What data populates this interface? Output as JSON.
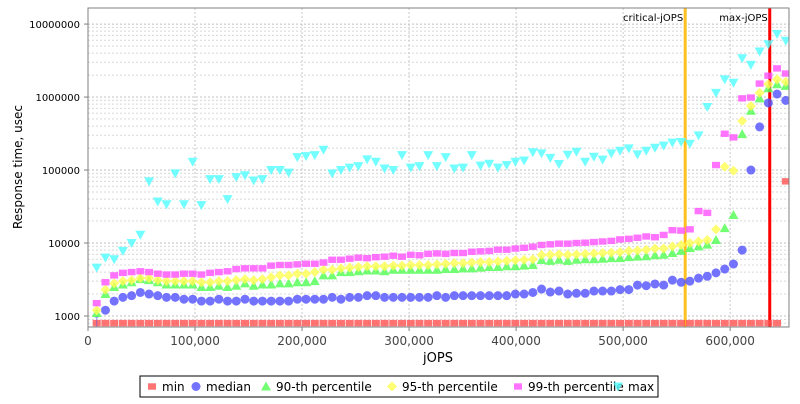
{
  "chart_data": {
    "type": "scatter",
    "title": "",
    "xlabel": "jOPS",
    "ylabel": "Response time, usec",
    "xlim": [
      0,
      655000
    ],
    "ylim": [
      707,
      16600000
    ],
    "yscale": "log",
    "grid": true,
    "legend_placement": "bottom",
    "x_ticks": [
      0,
      100000,
      200000,
      300000,
      400000,
      500000,
      600000
    ],
    "x_tick_labels": [
      "0",
      "100,000",
      "200,000",
      "300,000",
      "400,000",
      "500,000",
      "600,000"
    ],
    "y_ticks": [
      1000,
      10000,
      100000,
      1000000,
      10000000
    ],
    "y_tick_labels": [
      "1000",
      "10000",
      "100000",
      "1000000",
      "10000000"
    ],
    "x_step": 8150,
    "x_count": 80,
    "markers": [
      {
        "label": "critical-jOPS",
        "x": 558000,
        "color": "#ffc020"
      },
      {
        "label": "max-jOPS",
        "x": 637000,
        "color": "#ff0000"
      }
    ],
    "series": [
      {
        "name": "min",
        "color": "#ff5050",
        "shape": "square",
        "values": [
          800,
          800,
          800,
          800,
          800,
          800,
          800,
          800,
          800,
          800,
          800,
          800,
          800,
          800,
          800,
          800,
          800,
          800,
          800,
          800,
          800,
          800,
          800,
          800,
          800,
          800,
          800,
          800,
          800,
          800,
          800,
          800,
          800,
          800,
          800,
          800,
          800,
          800,
          800,
          800,
          800,
          800,
          800,
          800,
          800,
          800,
          800,
          800,
          800,
          800,
          800,
          800,
          800,
          800,
          800,
          800,
          800,
          800,
          800,
          800,
          800,
          800,
          800,
          800,
          800,
          800,
          800,
          800,
          800,
          800,
          800,
          800,
          800,
          800,
          800,
          800,
          800,
          800,
          800,
          70000
        ]
      },
      {
        "name": "median",
        "color": "#5050ff",
        "shape": "circle",
        "values": [
          700,
          1200,
          1600,
          1800,
          1900,
          2100,
          2000,
          1900,
          1800,
          1800,
          1700,
          1700,
          1600,
          1600,
          1700,
          1600,
          1600,
          1700,
          1600,
          1600,
          1600,
          1600,
          1600,
          1700,
          1700,
          1700,
          1700,
          1800,
          1700,
          1800,
          1800,
          1900,
          1900,
          1800,
          1800,
          1800,
          1800,
          1800,
          1800,
          1900,
          1800,
          1900,
          1900,
          1900,
          1900,
          1900,
          1900,
          1900,
          2000,
          2000,
          2100,
          2340,
          2130,
          2200,
          2000,
          2050,
          2050,
          2200,
          2200,
          2200,
          2300,
          2300,
          2650,
          2600,
          2750,
          2650,
          3100,
          2900,
          3000,
          3300,
          3500,
          3900,
          4400,
          5150,
          8000,
          100000,
          390000,
          830000,
          1100000,
          900000
        ]
      },
      {
        "name": "90-th percentile",
        "color": "#50ff50",
        "shape": "triangle-up",
        "values": [
          1100,
          2000,
          2500,
          2700,
          2900,
          3200,
          3100,
          2900,
          2700,
          2700,
          2700,
          2700,
          2500,
          2500,
          2600,
          2500,
          2600,
          2800,
          2600,
          2700,
          2700,
          2800,
          2800,
          2900,
          2900,
          3000,
          3600,
          3600,
          4000,
          4000,
          4100,
          4200,
          4200,
          4100,
          4300,
          4300,
          4300,
          4300,
          4300,
          4300,
          4400,
          4400,
          4500,
          4500,
          4600,
          4700,
          4700,
          4800,
          4800,
          4900,
          5000,
          5850,
          5700,
          5900,
          5700,
          5900,
          6000,
          6000,
          6100,
          6200,
          6200,
          6400,
          6500,
          6600,
          6800,
          6900,
          7300,
          7800,
          8500,
          9000,
          9500,
          11000,
          16000,
          24200,
          310000,
          650000,
          960000,
          1320000,
          1500000,
          1420000
        ]
      },
      {
        "name": "95-th percentile",
        "color": "#ffff50",
        "shape": "diamond",
        "values": [
          1200,
          2300,
          2800,
          3000,
          3100,
          3300,
          3300,
          3100,
          3000,
          3000,
          3000,
          3000,
          2900,
          2900,
          3000,
          3000,
          3100,
          3200,
          3100,
          3200,
          3400,
          3600,
          3600,
          3800,
          3800,
          4000,
          4300,
          4300,
          4500,
          4600,
          4700,
          4800,
          4800,
          4800,
          4900,
          4900,
          5000,
          5000,
          5000,
          5100,
          5200,
          5300,
          5300,
          5400,
          5500,
          5500,
          5600,
          5700,
          5800,
          5900,
          6000,
          6850,
          6900,
          7000,
          6900,
          7000,
          7100,
          7200,
          7300,
          7400,
          7500,
          7800,
          7900,
          8100,
          8400,
          8400,
          9000,
          9400,
          10000,
          10500,
          11000,
          15400,
          111000,
          97800,
          470000,
          754000,
          1140000,
          1500000,
          1750000,
          1620000
        ]
      },
      {
        "name": "99-th percentile",
        "color": "#ff50ff",
        "shape": "square",
        "values": [
          1500,
          2900,
          3600,
          3900,
          4000,
          4100,
          4000,
          3800,
          3700,
          3700,
          3800,
          3800,
          3700,
          3900,
          4000,
          4100,
          4400,
          4500,
          4500,
          4500,
          4900,
          5000,
          5000,
          5100,
          5200,
          5200,
          5400,
          5900,
          5900,
          6100,
          6300,
          6200,
          6400,
          6500,
          6700,
          6500,
          6900,
          6800,
          7100,
          7200,
          7100,
          7300,
          7300,
          7600,
          7700,
          7800,
          8100,
          8100,
          8400,
          8600,
          8900,
          9400,
          9600,
          9800,
          9800,
          10000,
          10100,
          10300,
          10500,
          10700,
          11200,
          11400,
          11800,
          12300,
          12000,
          12900,
          15000,
          14800,
          15400,
          27400,
          25900,
          117000,
          314000,
          280000,
          960000,
          985000,
          1530000,
          1960000,
          2470000,
          2100000
        ]
      },
      {
        "name": "max",
        "color": "#50ffff",
        "shape": "triangle-down",
        "values": [
          4600,
          6300,
          6000,
          7800,
          10000,
          13000,
          70000,
          37000,
          34000,
          90000,
          34000,
          130000,
          33000,
          75000,
          75000,
          40000,
          80000,
          85000,
          72000,
          75000,
          100000,
          100000,
          92000,
          150000,
          155000,
          160000,
          190000,
          90000,
          100000,
          108000,
          113000,
          140000,
          130000,
          105000,
          100000,
          160000,
          108000,
          113000,
          160000,
          113000,
          150000,
          105000,
          108000,
          160000,
          115000,
          122000,
          108000,
          117000,
          130000,
          135000,
          175000,
          169000,
          147000,
          121000,
          162000,
          178000,
          130000,
          152000,
          139000,
          169000,
          184000,
          198000,
          164000,
          184000,
          202000,
          216000,
          237000,
          242000,
          229000,
          298000,
          730000,
          1140000,
          1750000,
          1570000,
          3400000,
          2760000,
          4200000,
          5300000,
          7300000,
          5900000
        ]
      }
    ]
  }
}
